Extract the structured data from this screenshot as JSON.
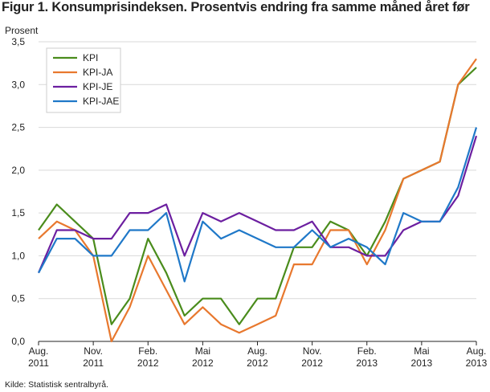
{
  "title": "Figur 1. Konsumprisindeksen. Prosentvis endring fra samme måned året før",
  "source": "Kilde: Statistisk sentralbyrå.",
  "chart_data": {
    "type": "line",
    "ylabel": "Prosent",
    "ylim": [
      0,
      3.5
    ],
    "yticks": [
      "0,0",
      "0,5",
      "1,0",
      "1,5",
      "2,0",
      "2,5",
      "3,0",
      "3,5"
    ],
    "grid": true,
    "legend_position": "top-left",
    "x": [
      "2011-08",
      "2011-09",
      "2011-10",
      "2011-11",
      "2011-12",
      "2012-01",
      "2012-02",
      "2012-03",
      "2012-04",
      "2012-05",
      "2012-06",
      "2012-07",
      "2012-08",
      "2012-09",
      "2012-10",
      "2012-11",
      "2012-12",
      "2013-01",
      "2013-02",
      "2013-03",
      "2013-04",
      "2013-05",
      "2013-06",
      "2013-07",
      "2013-08"
    ],
    "xticks": [
      {
        "index": 0,
        "line1": "Aug.",
        "line2": "2011"
      },
      {
        "index": 3,
        "line1": "Nov.",
        "line2": "2011"
      },
      {
        "index": 6,
        "line1": "Feb.",
        "line2": "2012"
      },
      {
        "index": 9,
        "line1": "Mai",
        "line2": "2012"
      },
      {
        "index": 12,
        "line1": "Aug.",
        "line2": "2012"
      },
      {
        "index": 15,
        "line1": "Nov.",
        "line2": "2012"
      },
      {
        "index": 18,
        "line1": "Feb.",
        "line2": "2013"
      },
      {
        "index": 21,
        "line1": "Mai",
        "line2": "2013"
      },
      {
        "index": 24,
        "line1": "Aug.",
        "line2": "2013"
      }
    ],
    "series": [
      {
        "name": "KPI",
        "color": "#4a8c1c",
        "values": [
          1.3,
          1.6,
          1.4,
          1.2,
          0.2,
          0.5,
          1.2,
          0.8,
          0.3,
          0.5,
          0.5,
          0.2,
          0.5,
          0.5,
          1.1,
          1.1,
          1.4,
          1.3,
          1.0,
          1.4,
          1.9,
          2.0,
          2.1,
          3.0,
          3.2
        ]
      },
      {
        "name": "KPI-JA",
        "color": "#e8782e",
        "values": [
          1.2,
          1.4,
          1.3,
          1.0,
          0.0,
          0.4,
          1.0,
          0.6,
          0.2,
          0.4,
          0.2,
          0.1,
          0.2,
          0.3,
          0.9,
          0.9,
          1.3,
          1.3,
          0.9,
          1.3,
          1.9,
          2.0,
          2.1,
          3.0,
          3.3
        ]
      },
      {
        "name": "KPI-JE",
        "color": "#6c1fa0",
        "values": [
          0.8,
          1.3,
          1.3,
          1.2,
          1.2,
          1.5,
          1.5,
          1.6,
          1.0,
          1.5,
          1.4,
          1.5,
          1.4,
          1.3,
          1.3,
          1.4,
          1.1,
          1.1,
          1.0,
          1.0,
          1.3,
          1.4,
          1.4,
          1.7,
          2.4
        ]
      },
      {
        "name": "KPI-JAE",
        "color": "#1f78c8",
        "values": [
          0.8,
          1.2,
          1.2,
          1.0,
          1.0,
          1.3,
          1.3,
          1.5,
          0.7,
          1.4,
          1.2,
          1.3,
          1.2,
          1.1,
          1.1,
          1.3,
          1.1,
          1.2,
          1.1,
          0.9,
          1.5,
          1.4,
          1.4,
          1.8,
          2.5
        ]
      }
    ]
  }
}
